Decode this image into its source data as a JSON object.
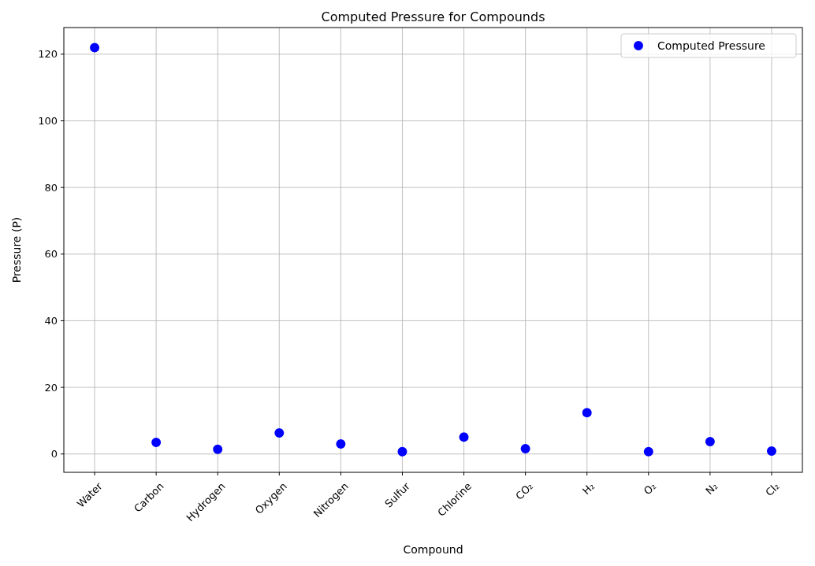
{
  "chart_data": {
    "type": "scatter",
    "title": "Computed Pressure for Compounds",
    "xlabel": "Compound",
    "ylabel": "Pressure (P)",
    "categories": [
      "Water",
      "Carbon",
      "Hydrogen",
      "Oxygen",
      "Nitrogen",
      "Sulfur",
      "Chlorine",
      "CO₂",
      "H₂",
      "O₂",
      "N₂",
      "Cl₂"
    ],
    "series": [
      {
        "name": "Computed Pressure",
        "color": "#0000ff",
        "values": [
          122,
          3.5,
          1.4,
          6.3,
          3.0,
          0.7,
          5.1,
          1.6,
          12.4,
          0.7,
          3.7,
          0.9
        ]
      }
    ],
    "ylim": [
      -5.5,
      128
    ],
    "yticks": [
      0,
      20,
      40,
      60,
      80,
      100,
      120
    ],
    "grid": true,
    "legend": "top right",
    "marker": "circle"
  }
}
